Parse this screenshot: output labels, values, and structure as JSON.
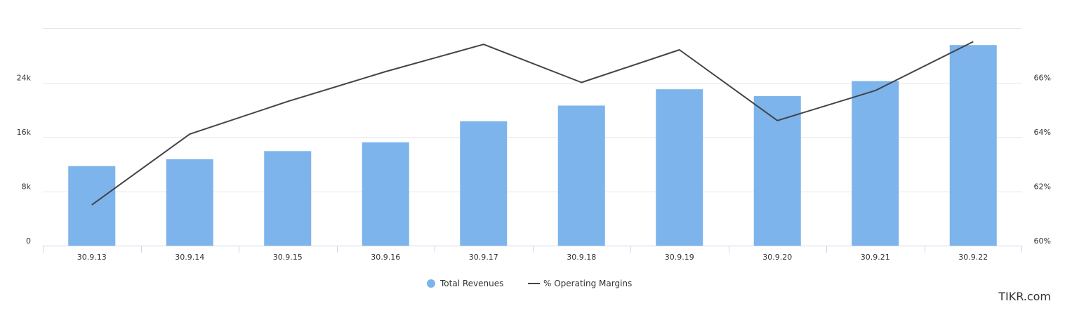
{
  "chart_data": {
    "type": "bar",
    "categories": [
      "30.9.13",
      "30.9.14",
      "30.9.15",
      "30.9.16",
      "30.9.17",
      "30.9.18",
      "30.9.19",
      "30.9.20",
      "30.9.21",
      "30.9.22"
    ],
    "series": [
      {
        "name": "Total Revenues",
        "type": "bar",
        "axis": "left",
        "color": "#7cb4eb",
        "values": [
          11700,
          12700,
          13900,
          15200,
          18300,
          20600,
          23000,
          22000,
          24200,
          29500
        ]
      },
      {
        "name": "% Operating Margins",
        "type": "line",
        "axis": "right",
        "color": "#434348",
        "values": [
          61.5,
          64.1,
          65.3,
          66.4,
          67.4,
          66.0,
          67.2,
          64.6,
          65.7,
          67.5
        ]
      }
    ],
    "y_left": {
      "ticks": [
        0,
        8000,
        16000,
        24000
      ],
      "tick_labels": [
        "0",
        "8k",
        "16k",
        "24k"
      ],
      "max": 32000
    },
    "y_right": {
      "ticks": [
        60,
        62,
        64,
        66
      ],
      "tick_labels": [
        "60%",
        "62%",
        "64%",
        "66%"
      ],
      "min": 60,
      "max": 68
    },
    "grid": true,
    "legend_position": "bottom-center"
  },
  "watermark": "TIKR.com"
}
